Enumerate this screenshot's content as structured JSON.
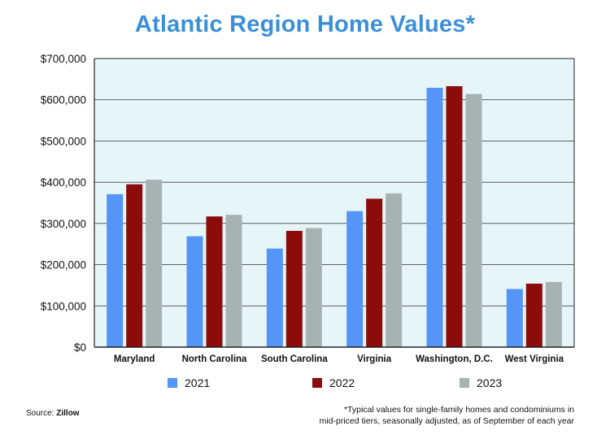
{
  "colors": {
    "title": "#3b8fd9",
    "plot_background": "#e6f6f8",
    "gridline": "#4a4a4a",
    "axis": "#222222",
    "series_2021": "#5595f7",
    "series_2022": "#8c0b0b",
    "series_2023": "#a6b3b2"
  },
  "footer": {
    "source_label": "Source:",
    "source_name": "Zillow",
    "footnote_line1": "*Typical values for single-family homes and condominiums in",
    "footnote_line2": "mid-priced tiers, seasonally adjusted, as of September of each year"
  },
  "chart_data": {
    "type": "bar",
    "title": "Atlantic Region Home Values*",
    "xlabel": "",
    "ylabel": "",
    "categories": [
      "Maryland",
      "North Carolina",
      "South Carolina",
      "Virginia",
      "Washington, D.C.",
      "West Virginia"
    ],
    "series": [
      {
        "name": "2021",
        "color": "#5595f7",
        "values": [
          371000,
          269000,
          239000,
          330000,
          629000,
          141000
        ]
      },
      {
        "name": "2022",
        "color": "#8c0b0b",
        "values": [
          395000,
          317000,
          282000,
          360000,
          633000,
          154000
        ]
      },
      {
        "name": "2023",
        "color": "#a6b3b2",
        "values": [
          406000,
          321000,
          289000,
          373000,
          614000,
          158000
        ]
      }
    ],
    "ylim": [
      0,
      700000
    ],
    "y_ticks": [
      0,
      100000,
      200000,
      300000,
      400000,
      500000,
      600000,
      700000
    ],
    "y_tick_labels": [
      "$0",
      "$100,000",
      "$200,000",
      "$300,000",
      "$400,000",
      "$500,000",
      "$600,000",
      "$700,000"
    ],
    "grid": true,
    "legend_position": "bottom"
  }
}
